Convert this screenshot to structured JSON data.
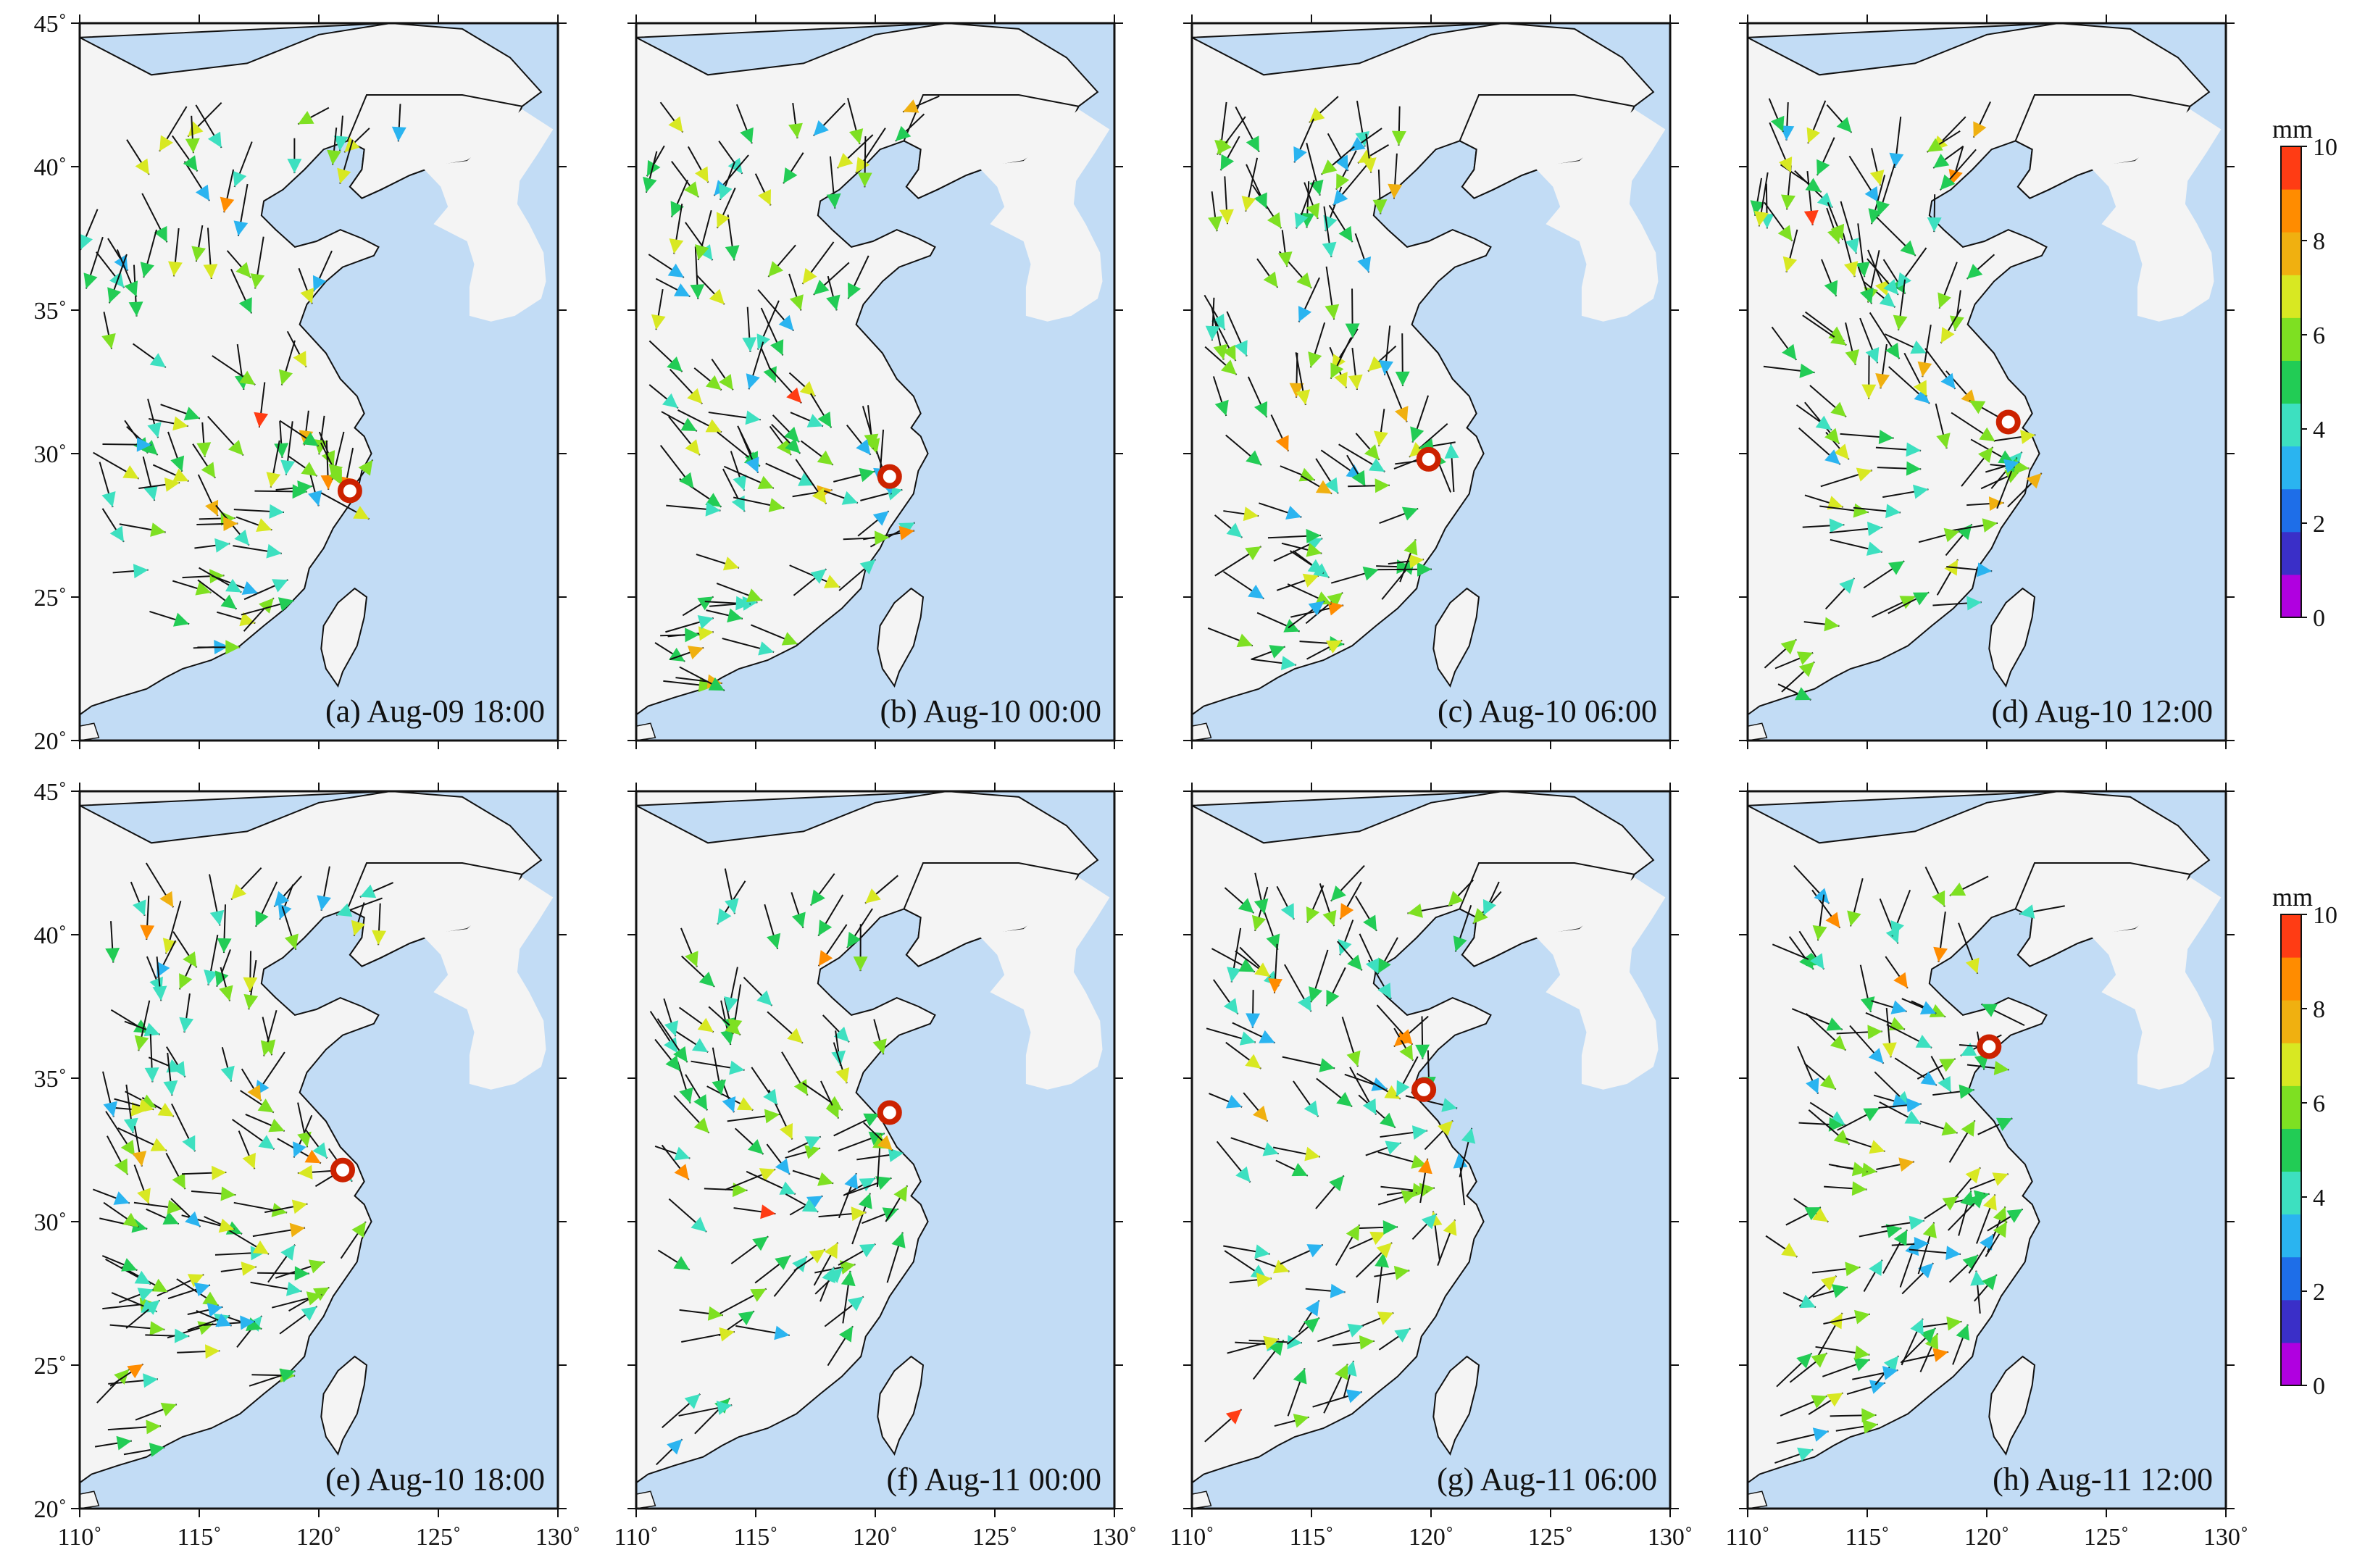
{
  "panels": [
    {
      "label": "(a) Aug-09 18:00",
      "center_lon": 121.3,
      "center_lat": 28.7
    },
    {
      "label": "(b) Aug-10 00:00",
      "center_lon": 120.6,
      "center_lat": 29.2
    },
    {
      "label": "(c) Aug-10 06:00",
      "center_lon": 119.9,
      "center_lat": 29.8
    },
    {
      "label": "(d) Aug-10 12:00",
      "center_lon": 120.9,
      "center_lat": 31.1
    },
    {
      "label": "(e) Aug-10 18:00",
      "center_lon": 121.0,
      "center_lat": 31.8
    },
    {
      "label": "(f) Aug-11 00:00",
      "center_lon": 120.6,
      "center_lat": 33.8
    },
    {
      "label": "(g) Aug-11 06:00",
      "center_lon": 119.7,
      "center_lat": 34.6
    },
    {
      "label": "(h) Aug-11 12:00",
      "center_lon": 120.1,
      "center_lat": 36.1
    }
  ],
  "axes": {
    "lon_ticks": [
      "110˚",
      "115˚",
      "120˚",
      "125˚",
      "130˚"
    ],
    "lat_ticks": [
      "20˚",
      "25˚",
      "30˚",
      "35˚",
      "40˚",
      "45˚"
    ],
    "lon_range": [
      110,
      130
    ],
    "lat_range": [
      20,
      45
    ]
  },
  "colorbar": {
    "unit": "mm",
    "ticks": [
      "0",
      "2",
      "4",
      "6",
      "8",
      "10"
    ],
    "range": [
      0,
      10
    ],
    "colors": [
      "#b000e0",
      "#3a2fc8",
      "#1e6ee8",
      "#2ab4f0",
      "#3de0c0",
      "#22cc55",
      "#7ee022",
      "#d8e822",
      "#f0b010",
      "#ff8c00",
      "#ff3c14"
    ]
  },
  "colors": {
    "sea": "#c2dcf5",
    "land": "#f4f4f4",
    "typhoon": "#cc2200"
  }
}
